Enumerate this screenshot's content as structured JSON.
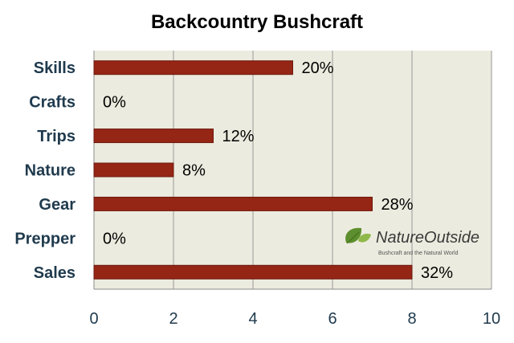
{
  "chart_data": {
    "type": "bar",
    "orientation": "horizontal",
    "title": "Backcountry Bushcraft",
    "categories": [
      "Skills",
      "Crafts",
      "Trips",
      "Nature",
      "Gear",
      "Prepper",
      "Sales"
    ],
    "values": [
      5,
      0,
      3,
      2,
      7,
      0,
      8
    ],
    "data_labels": [
      "20%",
      "0%",
      "12%",
      "8%",
      "28%",
      "0%",
      "32%"
    ],
    "xlim": [
      0,
      10
    ],
    "xticks": [
      "0",
      "2",
      "4",
      "6",
      "8",
      "10"
    ],
    "grid": true,
    "bar_color": "#952515",
    "plot_background": "#ecebdf"
  },
  "logo": {
    "name": "NatureOutside",
    "tagline": "Bushcraft and the Natural World",
    "icon": "leaf-icon"
  }
}
